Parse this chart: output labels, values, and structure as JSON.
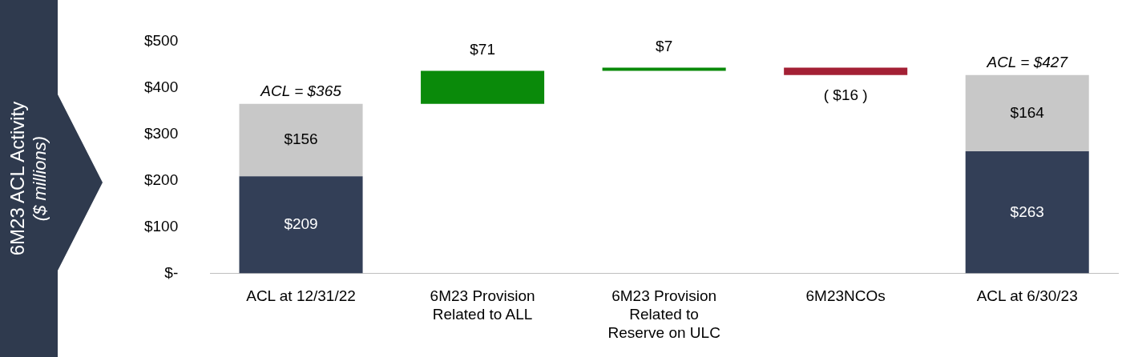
{
  "chart_data": {
    "type": "bar",
    "ylabel": "6M23 ACL Activity ($ millions)",
    "stacked": true,
    "categories": [
      "ACL at 12/31/22",
      "6M23 Provision Related to ALL",
      "6M23 Provision Related to Reserve on ULC",
      "6M23NCOs",
      "ACL at 6/30/23"
    ],
    "series": [
      {
        "color": "#333f57",
        "values": [
          209,
          null,
          null,
          null,
          263
        ],
        "value_labels": [
          "$209",
          null,
          null,
          null,
          "$263"
        ]
      },
      {
        "color": "#c8c8c8",
        "values": [
          156,
          null,
          null,
          null,
          164
        ],
        "value_labels": [
          "$156",
          null,
          null,
          null,
          "$164"
        ]
      },
      {
        "colors": [
          null,
          "#0a8a0a",
          "#0a8a0a",
          "#a32035",
          null
        ],
        "values": [
          null,
          71,
          7,
          -16,
          null
        ],
        "base": [
          null,
          365,
          436,
          443,
          null
        ],
        "value_labels": [
          null,
          "$71",
          "$7",
          "( $16 )",
          null
        ]
      }
    ],
    "ylim": [
      0,
      500
    ],
    "yticks": [
      {
        "value": 0,
        "label": "$-"
      },
      {
        "value": 100,
        "label": "$100"
      },
      {
        "value": 200,
        "label": "$200"
      },
      {
        "value": 300,
        "label": "$300"
      },
      {
        "value": 400,
        "label": "$400"
      },
      {
        "value": 500,
        "label": "$500"
      }
    ],
    "grid": false,
    "legend": false,
    "annotations": [
      {
        "text": "ACL = $365",
        "x": "ACL at 12/31/22",
        "y": 365
      },
      {
        "text": "ACL = $427",
        "x": "ACL at 6/30/23",
        "y": 427
      }
    ]
  }
}
